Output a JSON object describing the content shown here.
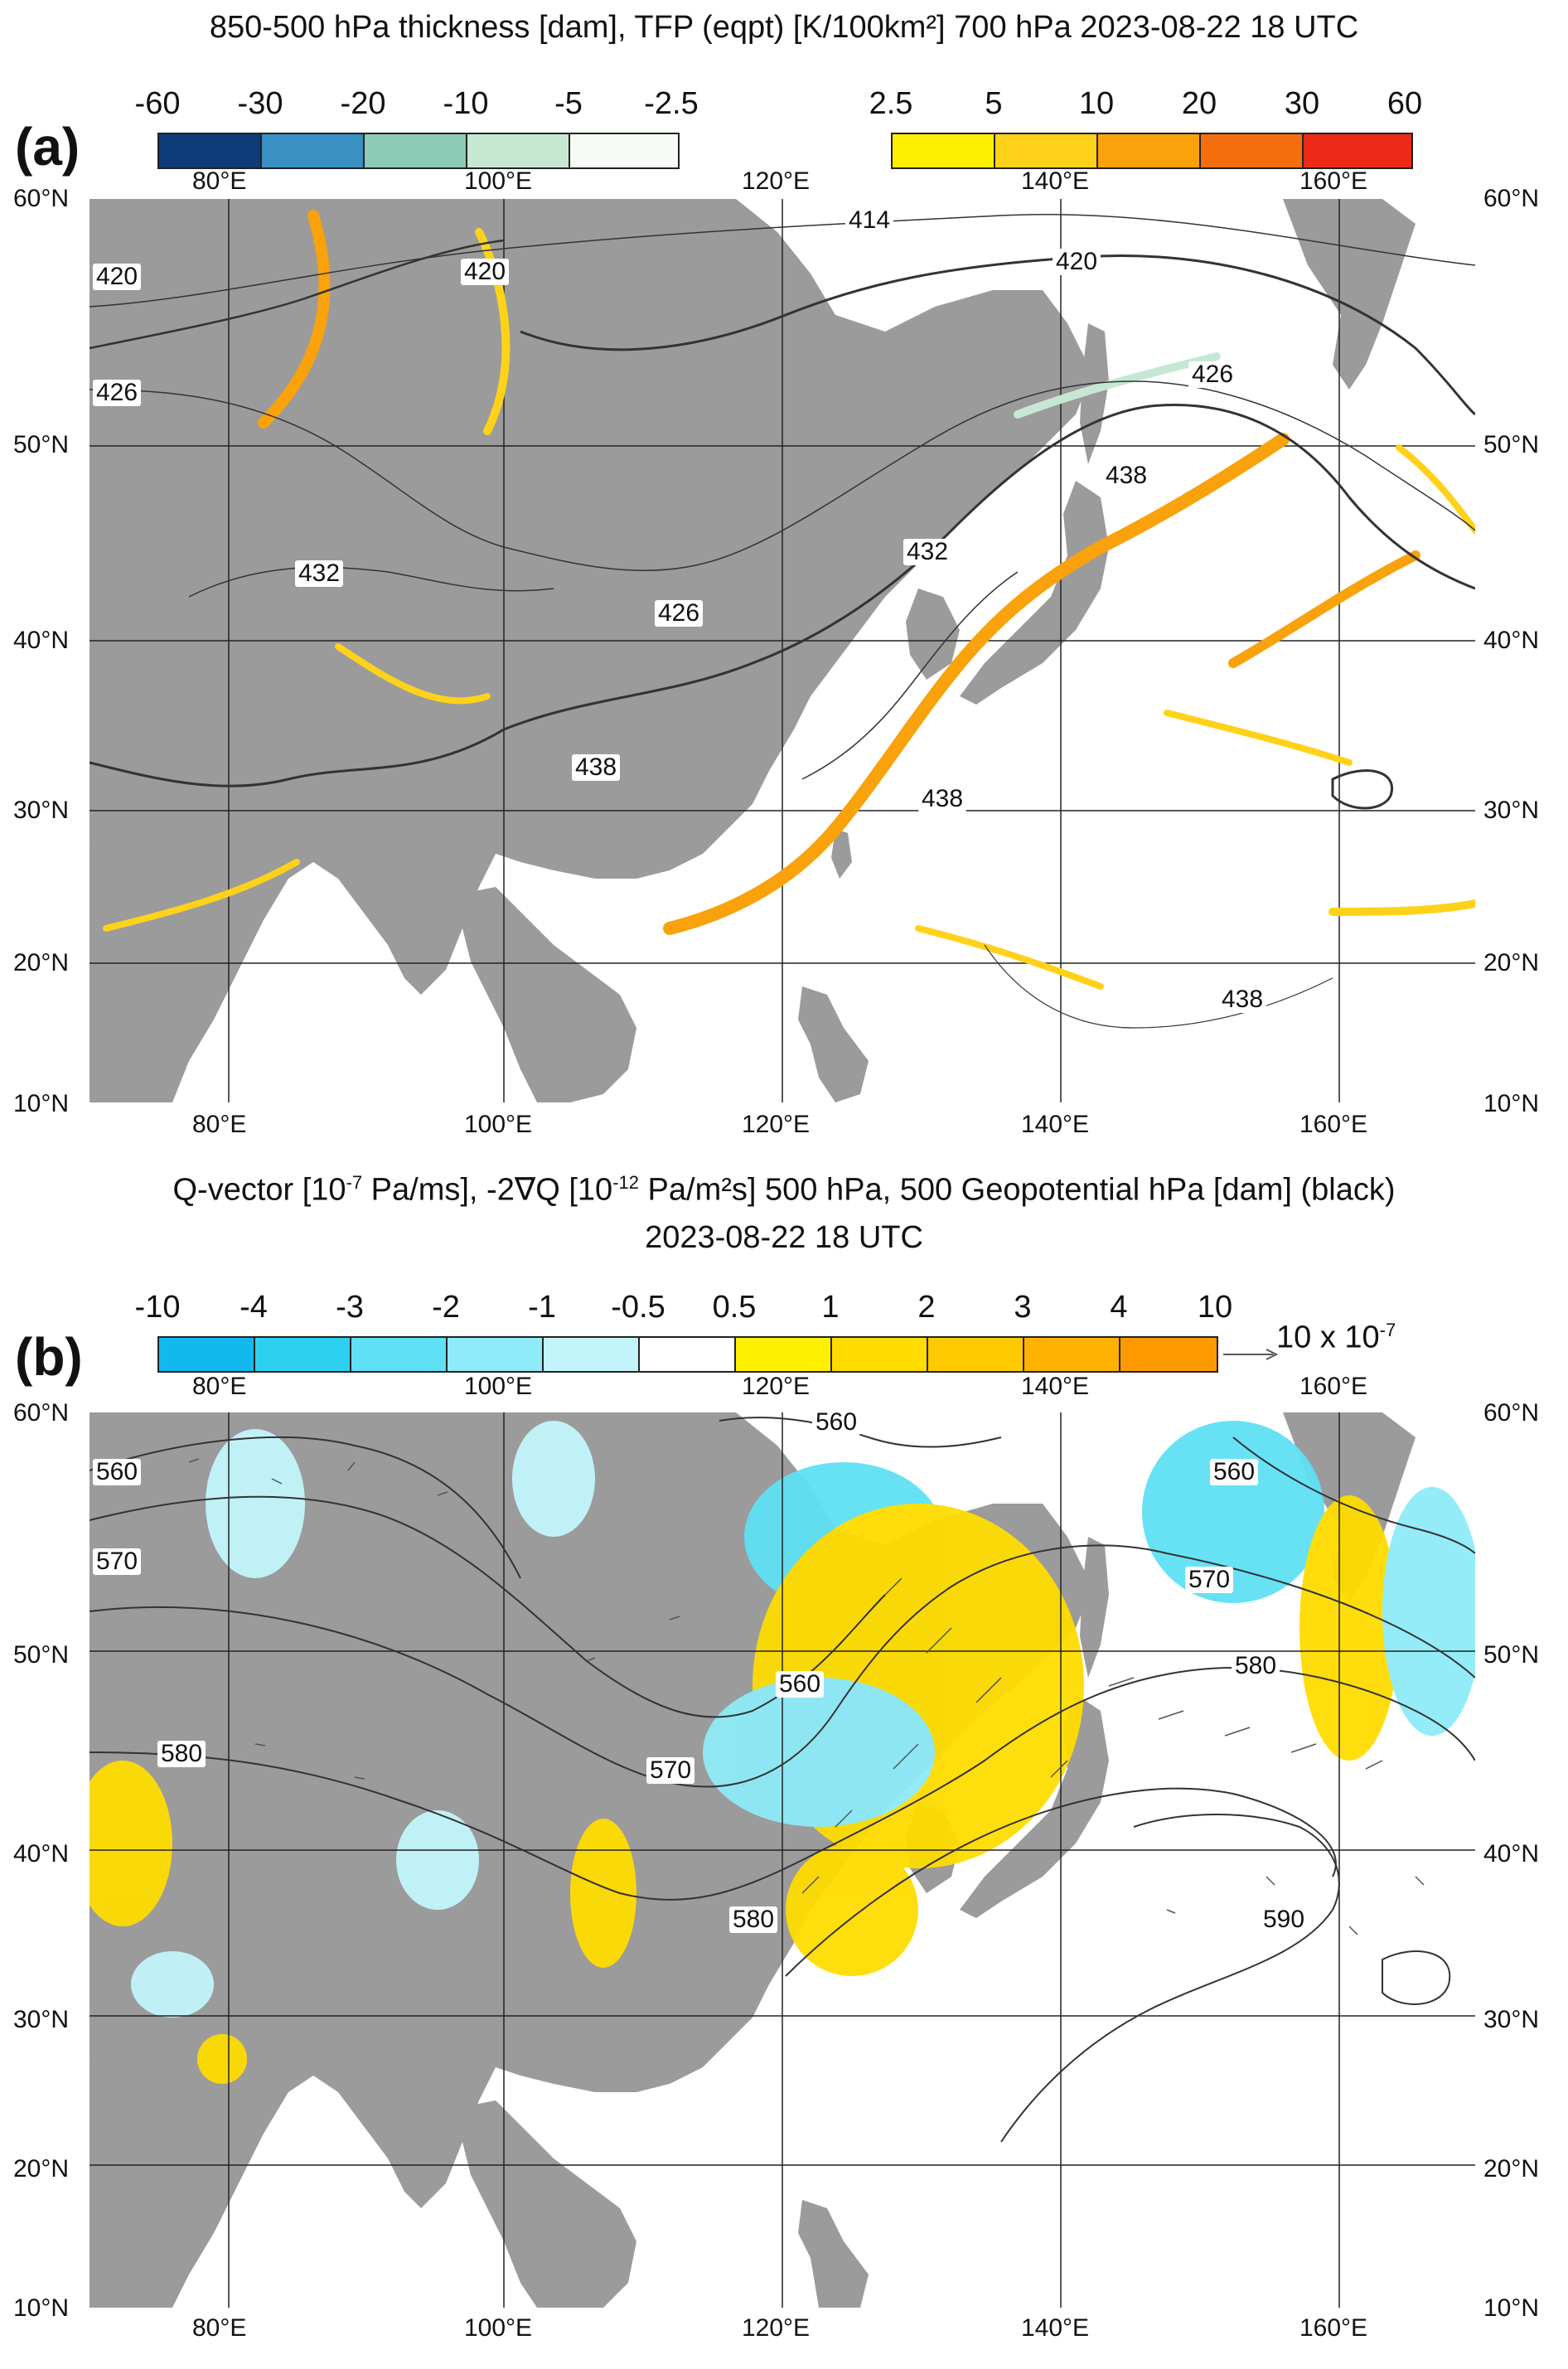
{
  "panel_a": {
    "title": "850-500 hPa thickness [dam], TFP (eqpt) [K/100km²] 700 hPa 2023-08-22 18 UTC",
    "label": "(a)",
    "neg_colorbar": {
      "ticks": [
        "-60",
        "-30",
        "-20",
        "-10",
        "-5",
        "-2.5"
      ],
      "colors": [
        "#0d3a78",
        "#3a8fc3",
        "#8ccbb6",
        "#c6e8d2",
        "#e3f3e4",
        "#f7fbf5"
      ]
    },
    "pos_colorbar": {
      "ticks": [
        "2.5",
        "5",
        "10",
        "20",
        "30",
        "60"
      ],
      "colors": [
        "#ffef00",
        "#ffd21a",
        "#f9a20c",
        "#f56e0d",
        "#ec2a17"
      ]
    },
    "top_lon_labels": [
      "80°E",
      "100°E",
      "120°E",
      "140°E",
      "160°E"
    ],
    "bottom_lon_labels": [
      "80°E",
      "100°E",
      "120°E",
      "140°E",
      "160°E"
    ],
    "lat_labels": [
      "60°N",
      "50°N",
      "40°N",
      "30°N",
      "20°N",
      "10°N"
    ],
    "contour_labels": [
      "414",
      "420",
      "420",
      "420",
      "426",
      "426",
      "426",
      "432",
      "432",
      "438",
      "438",
      "438",
      "438"
    ]
  },
  "panel_b": {
    "title_line1_pre": "Q-vector [10",
    "title_line1_sup1": "-7",
    "title_line1_mid": " Pa/ms], -2∇Q [10",
    "title_line1_sup2": "-12",
    "title_line1_post": " Pa/m²s] 500 hPa, 500 Geopotential hPa [dam] (black)",
    "title_line2": "2023-08-22 18 UTC",
    "label": "(b)",
    "colorbar": {
      "ticks": [
        "-10",
        "-4",
        "-3",
        "-2",
        "-1",
        "-0.5",
        "0.5",
        "1",
        "2",
        "3",
        "4",
        "10"
      ],
      "colors": [
        "#12b9ee",
        "#2ed0f0",
        "#5fe0f4",
        "#8eebf7",
        "#c2f5fb",
        "#ffffff",
        "#ffef00",
        "#ffdc00",
        "#ffca00",
        "#ffb300",
        "#ff9900"
      ]
    },
    "ref_vector_label_pre": "10 x 10",
    "ref_vector_label_sup": "-7",
    "top_lon_labels": [
      "80°E",
      "100°E",
      "120°E",
      "140°E",
      "160°E"
    ],
    "bottom_lon_labels": [
      "80°E",
      "100°E",
      "120°E",
      "140°E",
      "160°E"
    ],
    "lat_labels": [
      "60°N",
      "50°N",
      "40°N",
      "30°N",
      "20°N",
      "10°N"
    ],
    "contour_labels": [
      "560",
      "560",
      "560",
      "560",
      "570",
      "570",
      "570",
      "580",
      "580",
      "580",
      "590"
    ]
  },
  "colors": {
    "land": "#9b9b9b",
    "ocean": "#ffffff",
    "contour": "#333333"
  }
}
